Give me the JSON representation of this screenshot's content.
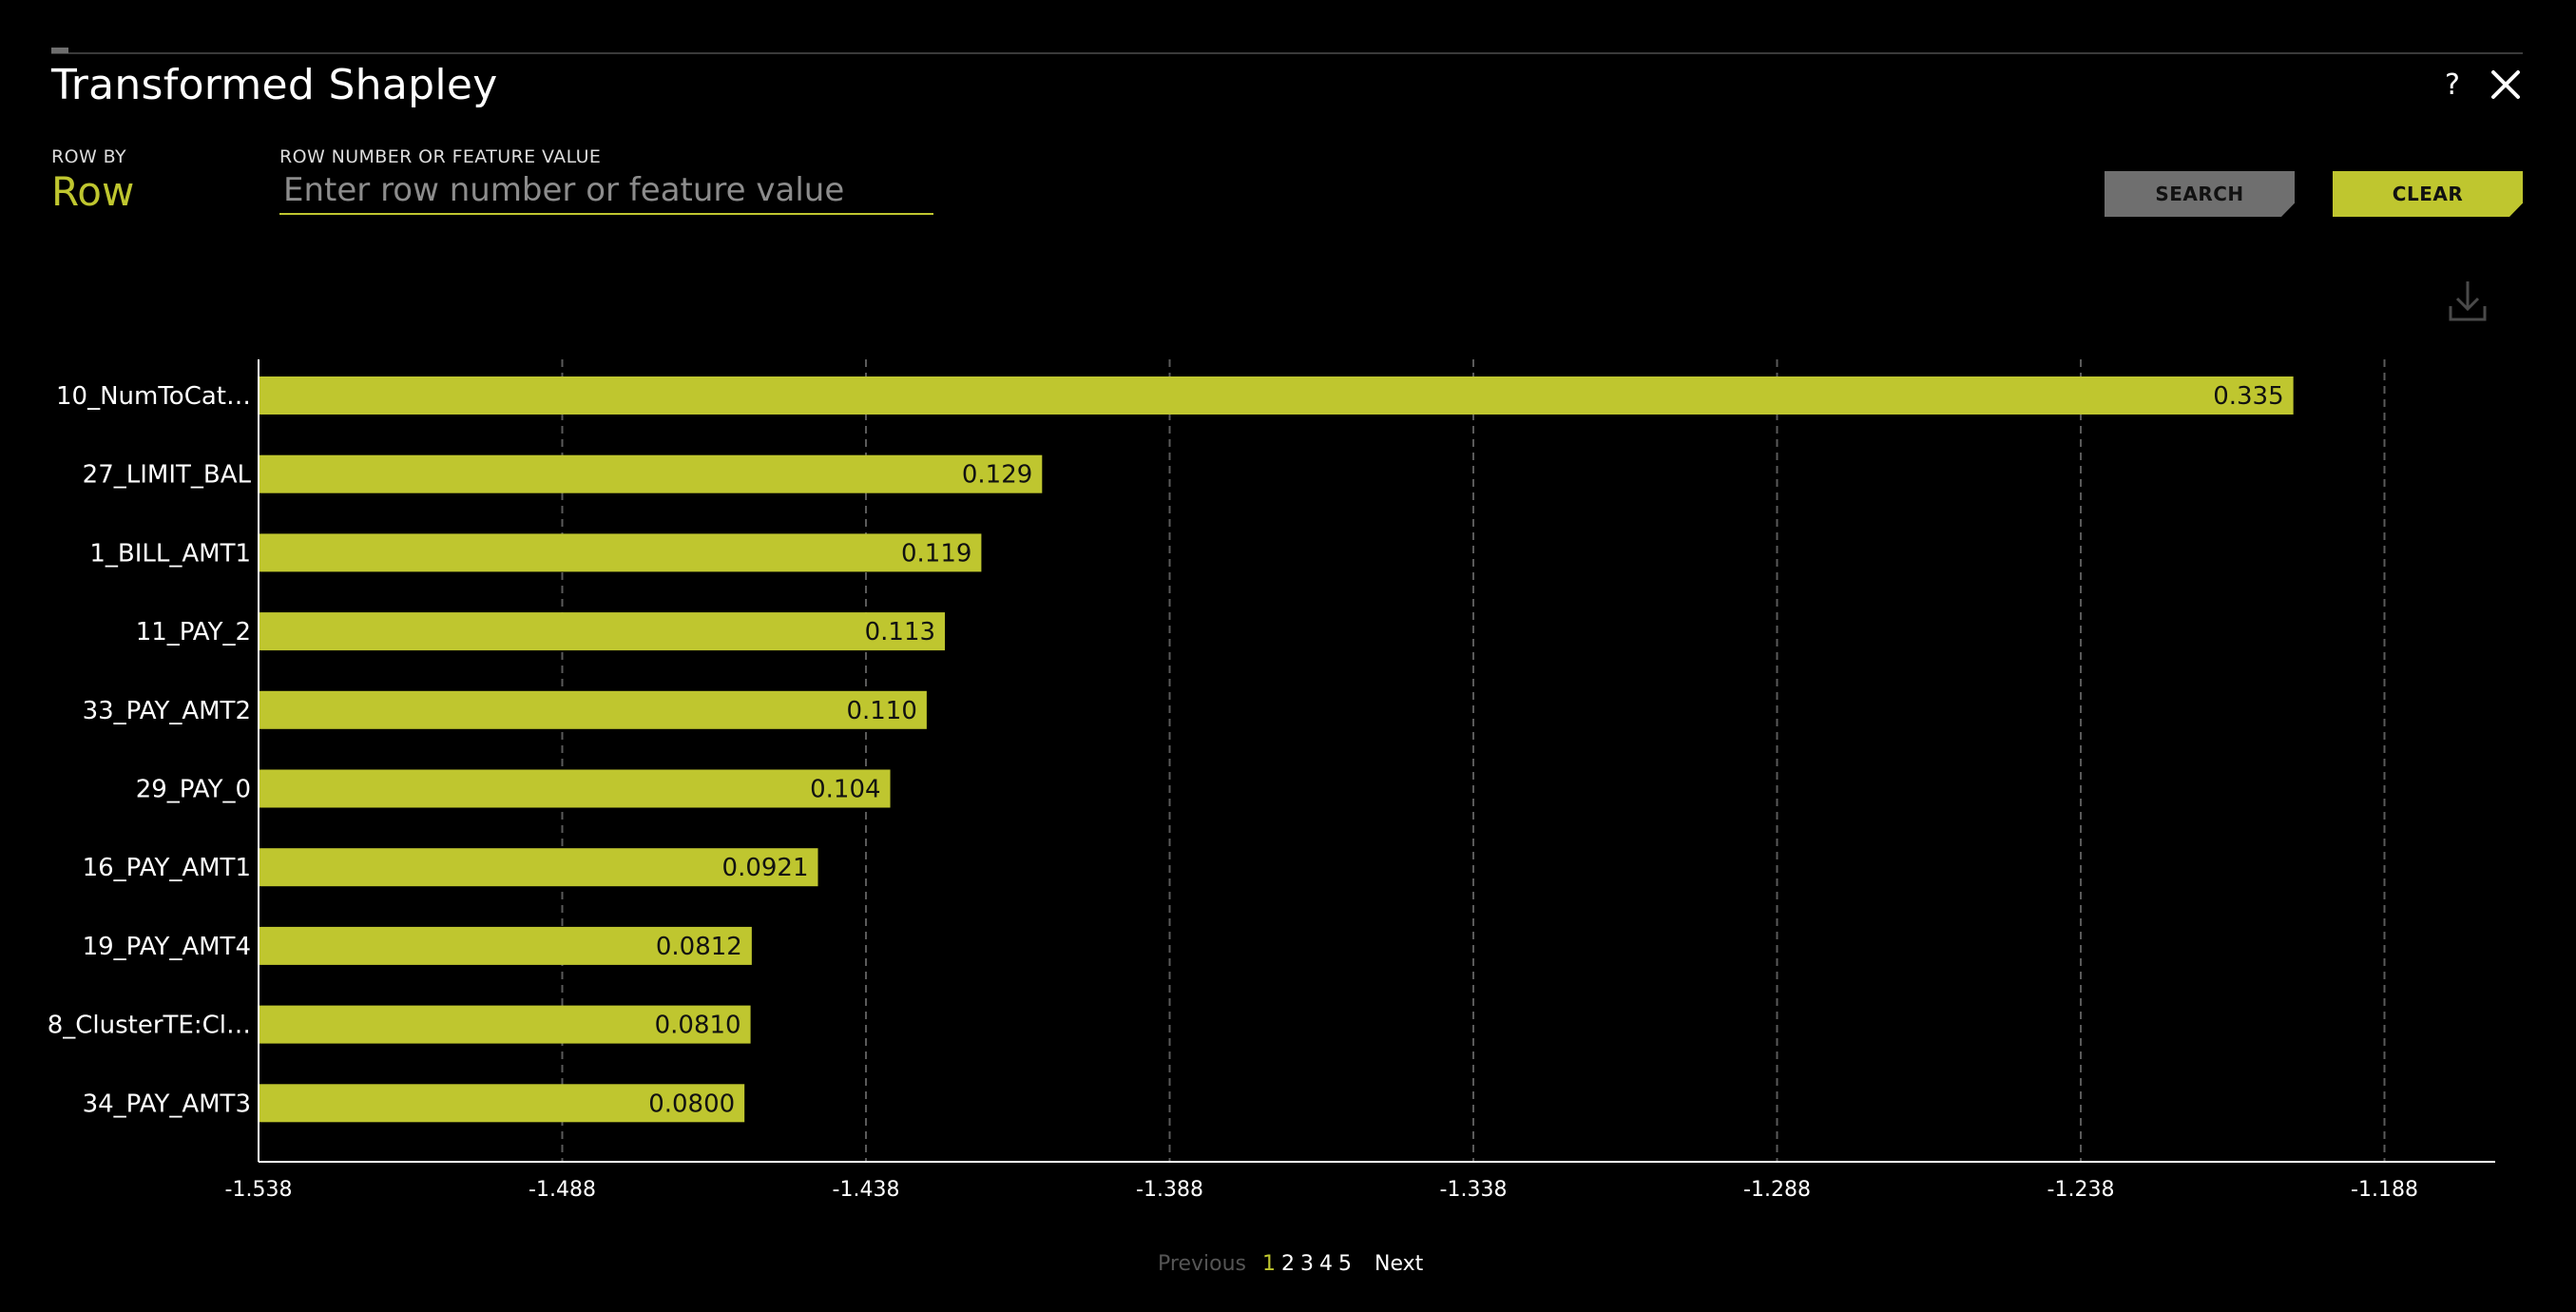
{
  "header": {
    "title": "Transformed Shapley",
    "help_label": "?"
  },
  "controls": {
    "row_by_label": "ROW BY",
    "row_by_value": "Row",
    "search_label": "ROW NUMBER OR FEATURE VALUE",
    "search_placeholder": "Enter row number or feature value",
    "search_value": "",
    "search_button": "SEARCH",
    "clear_button": "CLEAR"
  },
  "icons": {
    "close": "close-icon",
    "download": "download-icon",
    "help": "help-icon"
  },
  "colors": {
    "accent": "#bfc62f",
    "background": "#000000",
    "button_gray": "#6f6f6f"
  },
  "chart_data": {
    "type": "bar",
    "orientation": "horizontal",
    "baseline": -1.538,
    "xlim": [
      -1.538,
      -1.168
    ],
    "categories": [
      "10_NumToCat…",
      "27_LIMIT_BAL",
      "1_BILL_AMT1",
      "11_PAY_2",
      "33_PAY_AMT2",
      "29_PAY_0",
      "16_PAY_AMT1",
      "19_PAY_AMT4",
      "8_ClusterTE:Cl…",
      "34_PAY_AMT3"
    ],
    "values": [
      0.335,
      0.129,
      0.119,
      0.113,
      0.11,
      0.104,
      0.0921,
      0.0812,
      0.081,
      0.08
    ],
    "value_labels": [
      "0.335",
      "0.129",
      "0.119",
      "0.113",
      "0.110",
      "0.104",
      "0.0921",
      "0.0812",
      "0.0810",
      "0.0800"
    ],
    "x_ticks": [
      -1.538,
      -1.488,
      -1.438,
      -1.388,
      -1.338,
      -1.288,
      -1.238,
      -1.188
    ],
    "x_tick_labels": [
      "-1.538",
      "-1.488",
      "-1.438",
      "-1.388",
      "-1.338",
      "-1.288",
      "-1.238",
      "-1.188"
    ],
    "grid": "vertical dashed",
    "bar_color": "#bfc62f"
  },
  "pagination": {
    "previous": "Previous",
    "pages": [
      "1",
      "2",
      "3",
      "4",
      "5"
    ],
    "current": "1",
    "next": "Next"
  }
}
